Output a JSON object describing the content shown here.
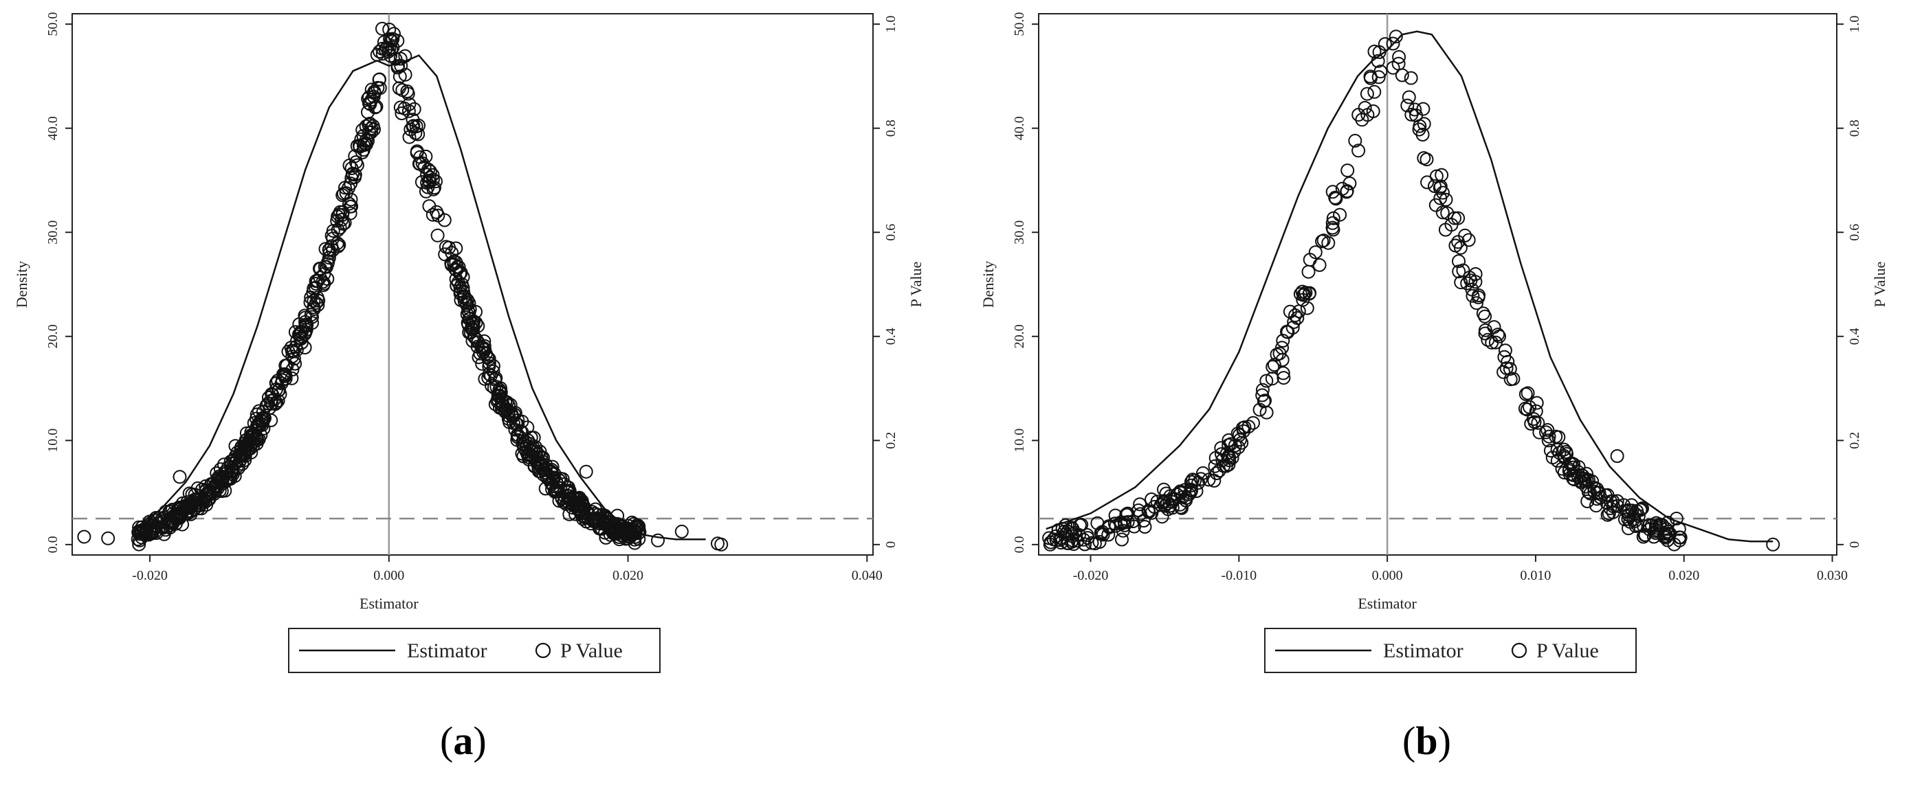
{
  "chart_data": [
    {
      "panel_label": "a",
      "type": "line+scatter",
      "xlabel": "Estimator",
      "ylabel_left": "Density",
      "ylabel_right": "P Value",
      "xlim": [
        -0.0265,
        0.0405
      ],
      "ylim_left": [
        -1.0,
        51.0
      ],
      "ylim_right": [
        -0.02,
        1.02
      ],
      "x_ticks": [
        -0.02,
        0.0,
        0.02,
        0.04
      ],
      "x_tick_labels": [
        "-0.020",
        "0.000",
        "0.020",
        "0.040"
      ],
      "y_left_ticks": [
        0,
        10,
        20,
        30,
        40,
        50
      ],
      "y_left_tick_labels": [
        "0.0",
        "10.0",
        "20.0",
        "30.0",
        "40.0",
        "50.0"
      ],
      "y_right_ticks": [
        0,
        0.2,
        0.4,
        0.6,
        0.8,
        1.0
      ],
      "y_right_tick_labels": [
        "0",
        "0.2",
        "0.4",
        "0.6",
        "0.8",
        "1.0"
      ],
      "reference_vline_x": 0.0,
      "reference_hline_p": 0.05,
      "legend": {
        "placement": "bottom-center",
        "entries": [
          "Estimator",
          "P Value"
        ]
      },
      "series": [
        {
          "name": "Estimator",
          "kind": "line",
          "x": [
            -0.0205,
            -0.019,
            -0.017,
            -0.015,
            -0.013,
            -0.011,
            -0.009,
            -0.007,
            -0.005,
            -0.003,
            -0.001,
            0.0,
            0.0015,
            0.0025,
            0.004,
            0.006,
            0.008,
            0.01,
            0.012,
            0.014,
            0.016,
            0.018,
            0.02,
            0.021,
            0.0225,
            0.024,
            0.0265
          ],
          "y": [
            2.0,
            3.5,
            6.0,
            9.5,
            14.5,
            21.0,
            28.5,
            36.0,
            42.0,
            45.5,
            46.5,
            46.0,
            46.5,
            47.0,
            45.0,
            38.0,
            30.0,
            22.0,
            15.0,
            10.0,
            6.5,
            3.5,
            1.5,
            1.0,
            0.7,
            0.5,
            0.5
          ]
        },
        {
          "name": "P Value",
          "kind": "scatter",
          "band_left": {
            "x": [
              -0.021,
              -0.019,
              -0.017,
              -0.015,
              -0.013,
              -0.011,
              -0.009,
              -0.007,
              -0.005,
              -0.003,
              -0.0015,
              0.0
            ],
            "p": [
              0.02,
              0.04,
              0.07,
              0.1,
              0.15,
              0.22,
              0.31,
              0.42,
              0.55,
              0.7,
              0.83,
              1.0
            ]
          },
          "band_right": {
            "x": [
              0.0,
              0.0015,
              0.003,
              0.005,
              0.007,
              0.009,
              0.011,
              0.013,
              0.015,
              0.017,
              0.019,
              0.021
            ],
            "p": [
              1.0,
              0.85,
              0.72,
              0.57,
              0.42,
              0.3,
              0.21,
              0.14,
              0.09,
              0.05,
              0.03,
              0.02
            ]
          },
          "spread": 0.05,
          "count": 900,
          "outliers": [
            {
              "x": -0.0255,
              "p": 0.015
            },
            {
              "x": -0.0235,
              "p": 0.012
            },
            {
              "x": -0.0175,
              "p": 0.13
            },
            {
              "x": 0.0225,
              "p": 0.008
            },
            {
              "x": 0.0245,
              "p": 0.025
            },
            {
              "x": 0.0275,
              "p": 0.002
            },
            {
              "x": 0.0278,
              "p": 0.0
            },
            {
              "x": 0.0165,
              "p": 0.14
            }
          ]
        }
      ]
    },
    {
      "panel_label": "b",
      "type": "line+scatter",
      "xlabel": "Estimator",
      "ylabel_left": "Density",
      "ylabel_right": "P Value",
      "xlim": [
        -0.0235,
        0.0303
      ],
      "ylim_left": [
        -1.0,
        51.0
      ],
      "ylim_right": [
        -0.02,
        1.02
      ],
      "x_ticks": [
        -0.02,
        -0.01,
        0.0,
        0.01,
        0.02,
        0.03
      ],
      "x_tick_labels": [
        "-0.020",
        "-0.010",
        "0.000",
        "0.010",
        "0.020",
        "0.030"
      ],
      "y_left_ticks": [
        0,
        10,
        20,
        30,
        40,
        50
      ],
      "y_left_tick_labels": [
        "0.0",
        "10.0",
        "20.0",
        "30.0",
        "40.0",
        "50.0"
      ],
      "y_right_ticks": [
        0,
        0.2,
        0.4,
        0.6,
        0.8,
        1.0
      ],
      "y_right_tick_labels": [
        "0",
        "0.2",
        "0.4",
        "0.6",
        "0.8",
        "1.0"
      ],
      "reference_vline_x": 0.0,
      "reference_hline_p": 0.05,
      "legend": {
        "placement": "bottom-center",
        "entries": [
          "Estimator",
          "P Value"
        ]
      },
      "series": [
        {
          "name": "Estimator",
          "kind": "line",
          "x": [
            -0.023,
            -0.02,
            -0.017,
            -0.014,
            -0.012,
            -0.01,
            -0.008,
            -0.006,
            -0.004,
            -0.002,
            -0.001,
            0.0,
            0.001,
            0.002,
            0.003,
            0.005,
            0.007,
            0.009,
            0.011,
            0.013,
            0.015,
            0.017,
            0.019,
            0.021,
            0.023,
            0.0245,
            0.026
          ],
          "y": [
            1.5,
            3.0,
            5.5,
            9.5,
            13.0,
            18.5,
            26.0,
            33.5,
            40.0,
            45.0,
            46.5,
            47.5,
            49.0,
            49.3,
            49.0,
            45.0,
            37.0,
            27.0,
            18.0,
            12.0,
            7.5,
            4.5,
            2.5,
            1.5,
            0.5,
            0.3,
            0.3
          ]
        },
        {
          "name": "P Value",
          "kind": "scatter",
          "band_left": {
            "x": [
              -0.023,
              -0.02,
              -0.017,
              -0.014,
              -0.012,
              -0.01,
              -0.008,
              -0.006,
              -0.004,
              -0.002,
              -0.001,
              0.0
            ],
            "p": [
              0.01,
              0.02,
              0.05,
              0.09,
              0.13,
              0.2,
              0.3,
              0.44,
              0.6,
              0.78,
              0.88,
              1.0
            ]
          },
          "band_right": {
            "x": [
              0.0,
              0.001,
              0.002,
              0.004,
              0.006,
              0.008,
              0.01,
              0.012,
              0.014,
              0.016,
              0.018,
              0.02
            ],
            "p": [
              1.0,
              0.93,
              0.82,
              0.64,
              0.48,
              0.34,
              0.24,
              0.16,
              0.1,
              0.06,
              0.03,
              0.015
            ]
          },
          "spread": 0.06,
          "count": 420,
          "outliers": [
            {
              "x": 0.026,
              "p": 0.0
            },
            {
              "x": -0.0225,
              "p": 0.01
            },
            {
              "x": 0.0155,
              "p": 0.17
            },
            {
              "x": 0.0195,
              "p": 0.05
            }
          ]
        }
      ]
    }
  ]
}
